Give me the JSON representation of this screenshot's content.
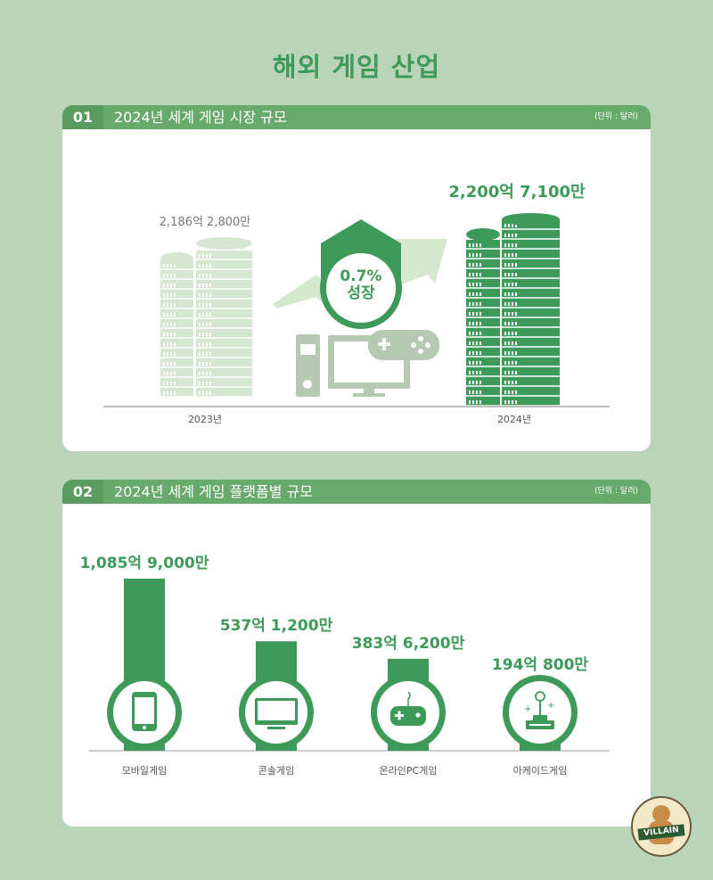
{
  "title": "해외 게임 산업",
  "section1": {
    "num": "01",
    "title": "2024년 세계 게임 시장 규모",
    "unit": "(단위 : 달러)",
    "value_2023": "2,186억 2,800만",
    "value_2024": "2,200억 7,100만",
    "label_2023": "2023년",
    "label_2024": "2024년",
    "growth_pct": "0.7%",
    "growth_label": "성장"
  },
  "section2": {
    "num": "02",
    "title": "2024년 세계 게임 플랫폼별 규모",
    "unit": "(단위 : 달러)"
  },
  "chart_data": {
    "type": "bar",
    "categories": [
      "모바일게임",
      "콘솔게임",
      "온라인PC게임",
      "아케이드게임"
    ],
    "values": [
      1085.9,
      537.12,
      383.62,
      194.08
    ],
    "data_labels": [
      "1,085억 9,000만",
      "537억 1,200만",
      "383억 6,200만",
      "194억 800만"
    ],
    "icons": [
      "smartphone-icon",
      "monitor-icon",
      "gamepad-icon",
      "joystick-icon"
    ],
    "unit": "억 달러",
    "color": "#3d9a58"
  },
  "logo": {
    "text": "VILLAIN"
  },
  "colors": {
    "accent": "#3d9a58",
    "header": "#68aa6c",
    "light_coin": "#d5e7d0",
    "background": "#b9d4b9"
  }
}
